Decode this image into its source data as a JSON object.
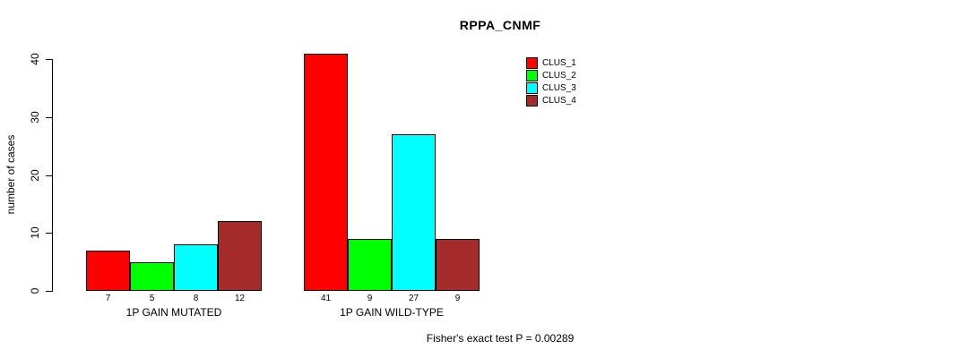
{
  "chart_data": {
    "type": "bar",
    "title": "RPPA_CNMF",
    "xlabel": "",
    "ylabel": "number of cases",
    "ylim": [
      0,
      40
    ],
    "yticks": [
      0,
      10,
      20,
      30,
      40
    ],
    "categories": [
      "1P GAIN MUTATED",
      "1P GAIN WILD-TYPE"
    ],
    "series": [
      {
        "name": "CLUS_1",
        "color": "#ff0000",
        "values": [
          7,
          41
        ]
      },
      {
        "name": "CLUS_2",
        "color": "#00ff00",
        "values": [
          5,
          9
        ]
      },
      {
        "name": "CLUS_3",
        "color": "#00ffff",
        "values": [
          8,
          27
        ]
      },
      {
        "name": "CLUS_4",
        "color": "#a52a2a",
        "values": [
          12,
          9
        ]
      }
    ],
    "bar_value_labels_shown": true,
    "legend_position": "top-right",
    "grid": false,
    "annotation": "Fisher's exact test P = 0.00289"
  }
}
